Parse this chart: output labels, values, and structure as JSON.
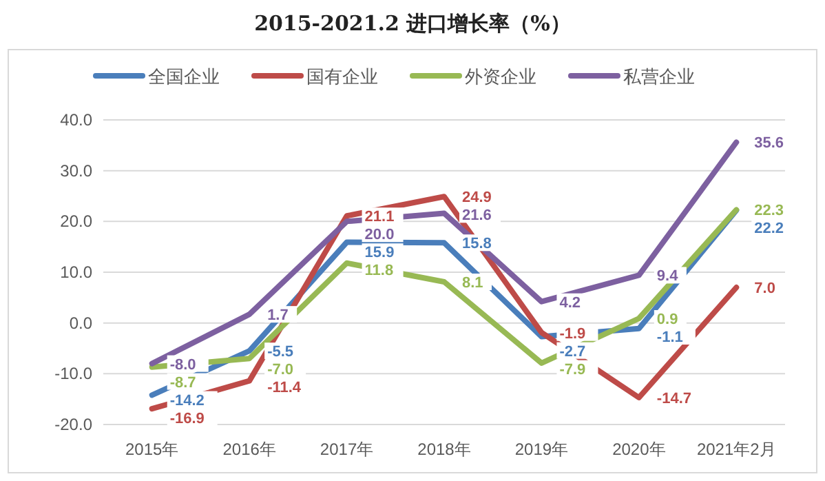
{
  "chart_data": {
    "type": "line",
    "title": "2015-2021.2 进口增长率（%）",
    "categories": [
      "2015年",
      "2016年",
      "2017年",
      "2018年",
      "2019年",
      "2020年",
      "2021年2月"
    ],
    "series": [
      {
        "name": "全国企业",
        "color": "#4a7ebb",
        "values": [
          -14.2,
          -5.5,
          15.9,
          15.8,
          -2.7,
          -1.1,
          22.2
        ],
        "value_labels": [
          "-14.2",
          "-5.5",
          "15.9",
          "15.8",
          "-2.7",
          "-1.1",
          "22.2"
        ]
      },
      {
        "name": "国有企业",
        "color": "#be4b48",
        "values": [
          -16.9,
          -11.4,
          21.1,
          24.9,
          -1.9,
          -14.7,
          7.0
        ],
        "value_labels": [
          "-16.9",
          "-11.4",
          "21.1",
          "24.9",
          "-1.9",
          "-14.7",
          "7.0"
        ]
      },
      {
        "name": "外资企业",
        "color": "#98b954",
        "values": [
          -8.7,
          -7.0,
          11.8,
          8.1,
          -7.9,
          0.9,
          22.3
        ],
        "value_labels": [
          "-8.7",
          "-7.0",
          "11.8",
          "8.1",
          "-7.9",
          "0.9",
          "22.3"
        ]
      },
      {
        "name": "私营企业",
        "color": "#7d60a0",
        "values": [
          -8.0,
          1.7,
          20.0,
          21.6,
          4.2,
          9.4,
          35.6
        ],
        "value_labels": [
          "-8.0",
          "1.7",
          "20.0",
          "21.6",
          "4.2",
          "9.4",
          "35.6"
        ]
      }
    ],
    "ylim": [
      -20,
      40
    ],
    "yticks": [
      {
        "value": -20,
        "label": "-20.0"
      },
      {
        "value": -10,
        "label": "-10.0"
      },
      {
        "value": 0,
        "label": "0.0"
      },
      {
        "value": 10,
        "label": "10.0"
      },
      {
        "value": 20,
        "label": "20.0"
      },
      {
        "value": 30,
        "label": "30.0"
      },
      {
        "value": 40,
        "label": "40.0"
      }
    ],
    "grid": "y",
    "legend": "top",
    "marker": "none",
    "line_style": "solid"
  }
}
